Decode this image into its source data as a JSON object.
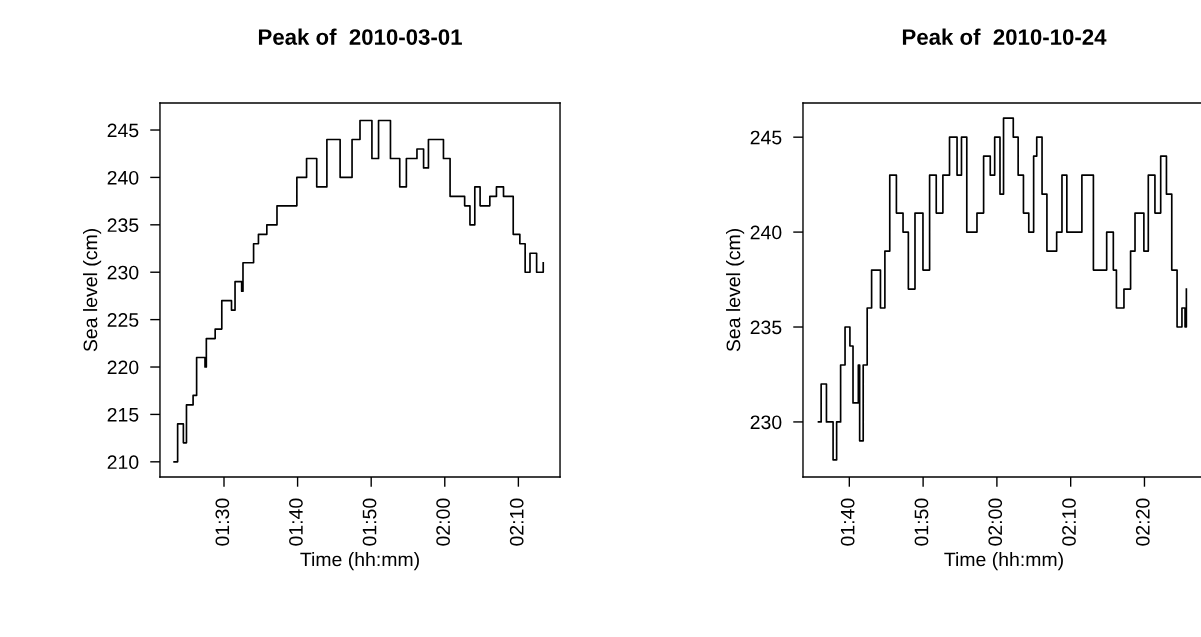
{
  "chart_data": [
    {
      "type": "step",
      "title": "Peak of  2010-03-01",
      "xlabel": "Time (hh:mm)",
      "ylabel": "Sea level (cm)",
      "grid": false,
      "series": [
        {
          "color": "#000000",
          "x": [
            1.387,
            1.395,
            1.408,
            1.415,
            1.43,
            1.438,
            1.457,
            1.46,
            1.48,
            1.495,
            1.517,
            1.525,
            1.54,
            1.543,
            1.567,
            1.578,
            1.597,
            1.62,
            1.638,
            1.665,
            1.687,
            1.71,
            1.733,
            1.763,
            1.79,
            1.808,
            1.835,
            1.85,
            1.877,
            1.898,
            1.913,
            1.937,
            1.952,
            1.963,
            1.985,
            1.997,
            2.012,
            2.03,
            2.045,
            2.057,
            2.068,
            2.08,
            2.102,
            2.117,
            2.133,
            2.155,
            2.17,
            2.182,
            2.193,
            2.208,
            2.223
          ],
          "values": [
            210,
            214,
            212,
            216,
            217,
            221,
            220,
            223,
            224,
            227,
            226,
            229,
            228,
            231,
            233,
            234,
            235,
            237,
            237,
            240,
            242,
            239,
            244,
            240,
            244,
            246,
            242,
            246,
            242,
            239,
            242,
            243,
            241,
            244,
            244,
            242,
            238,
            238,
            237,
            235,
            239,
            237,
            238,
            239,
            238,
            234,
            233,
            230,
            232,
            230,
            231
          ]
        }
      ],
      "xlim": [
        1.355,
        2.261
      ],
      "ylim": [
        208.4,
        247.85
      ],
      "xticks": [
        {
          "value": 1.5,
          "label": "01:30"
        },
        {
          "value": 1.6666667,
          "label": "01:40"
        },
        {
          "value": 1.8333333,
          "label": "01:50"
        },
        {
          "value": 2.0,
          "label": "02:00"
        },
        {
          "value": 2.1666667,
          "label": "02:10"
        }
      ],
      "yticks": [
        210,
        215,
        220,
        225,
        230,
        235,
        240,
        245
      ]
    },
    {
      "type": "step",
      "title": "Peak of  2010-10-24",
      "xlabel": "Time (hh:mm)",
      "ylabel": "Sea level (cm)",
      "grid": false,
      "series": [
        {
          "color": "#000000",
          "x": [
            1.597,
            1.603,
            1.615,
            1.63,
            1.638,
            1.647,
            1.657,
            1.668,
            1.675,
            1.687,
            1.69,
            1.698,
            1.707,
            1.717,
            1.737,
            1.747,
            1.758,
            1.773,
            1.788,
            1.8,
            1.815,
            1.833,
            1.848,
            1.863,
            1.878,
            1.893,
            1.91,
            1.92,
            1.932,
            1.955,
            1.97,
            1.985,
            1.995,
            2.007,
            2.015,
            2.037,
            2.048,
            2.06,
            2.072,
            2.083,
            2.09,
            2.102,
            2.113,
            2.135,
            2.147,
            2.158,
            2.177,
            2.192,
            2.218,
            2.233,
            2.248,
            2.263,
            2.27,
            2.287,
            2.302,
            2.312,
            2.332,
            2.342,
            2.357,
            2.37,
            2.383,
            2.395,
            2.407,
            2.418,
            2.425,
            2.428
          ],
          "values": [
            230,
            232,
            230,
            228,
            230,
            233,
            235,
            234,
            231,
            233,
            229,
            233,
            236,
            238,
            236,
            239,
            243,
            241,
            240,
            237,
            241,
            238,
            243,
            241,
            243,
            245,
            243,
            245,
            240,
            241,
            244,
            243,
            245,
            242,
            246,
            245,
            243,
            241,
            240,
            244,
            245,
            242,
            239,
            240,
            243,
            240,
            240,
            243,
            238,
            238,
            240,
            238,
            236,
            237,
            239,
            241,
            239,
            243,
            241,
            244,
            242,
            238,
            235,
            236,
            235,
            237
          ]
        }
      ],
      "xlim": [
        1.562,
        2.47
      ],
      "ylim": [
        227.1,
        246.8
      ],
      "xticks": [
        {
          "value": 1.6666667,
          "label": "01:40"
        },
        {
          "value": 1.8333333,
          "label": "01:50"
        },
        {
          "value": 2.0,
          "label": "02:00"
        },
        {
          "value": 2.1666667,
          "label": "02:10"
        },
        {
          "value": 2.3333333,
          "label": "02:20"
        }
      ],
      "yticks": [
        230,
        235,
        240,
        245
      ]
    }
  ]
}
